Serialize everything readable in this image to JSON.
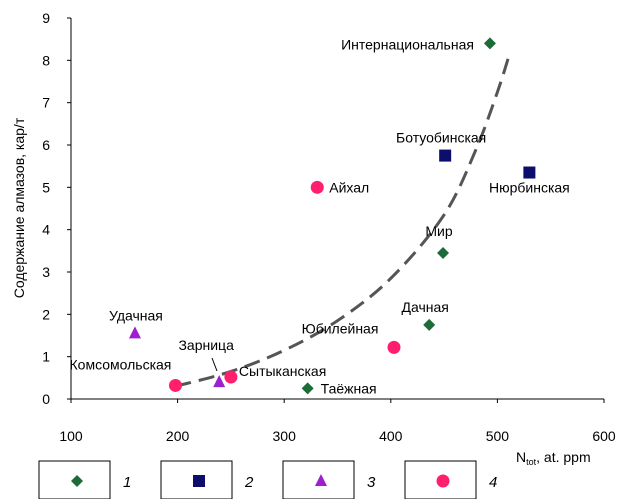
{
  "chart_data": {
    "type": "scatter",
    "xlabel": {
      "main": "N",
      "sub": "tot",
      "rest": ", at. ppm"
    },
    "ylabel": "Содержание алмазов, кар/т",
    "xlim": [
      100,
      600
    ],
    "ylim": [
      0,
      9
    ],
    "x_ticks": [
      "100",
      "200",
      "300",
      "400",
      "500",
      "600"
    ],
    "y_ticks": [
      "0",
      "1",
      "2",
      "3",
      "4",
      "5",
      "6",
      "7",
      "8",
      "9"
    ],
    "grid": false,
    "legend_position": "bottom",
    "series": [
      {
        "name": "1",
        "marker": "diamond",
        "color": "#1e6b3a",
        "points": [
          {
            "x": 493,
            "y": 8.4,
            "label": "Интернациональная"
          },
          {
            "x": 449,
            "y": 3.45,
            "label": "Мир"
          },
          {
            "x": 436,
            "y": 1.75,
            "label": "Дачная"
          },
          {
            "x": 322,
            "y": 0.25,
            "label": "Таёжная"
          }
        ]
      },
      {
        "name": "2",
        "marker": "square",
        "color": "#0d0d6b",
        "points": [
          {
            "x": 451,
            "y": 5.75,
            "label": "Ботуобинская"
          },
          {
            "x": 530,
            "y": 5.35,
            "label": "Нюрбинская"
          }
        ]
      },
      {
        "name": "3",
        "marker": "triangle",
        "color": "#9c1fd0",
        "points": [
          {
            "x": 160,
            "y": 1.55,
            "label": "Удачная"
          },
          {
            "x": 239,
            "y": 0.4,
            "label": "Зарница"
          }
        ]
      },
      {
        "name": "4",
        "marker": "circle",
        "color": "#ff1f6e",
        "points": [
          {
            "x": 331,
            "y": 5.0,
            "label": "Айхал"
          },
          {
            "x": 403,
            "y": 1.22,
            "label": "Юбилейная"
          },
          {
            "x": 250,
            "y": 0.52,
            "label": "Сытыканская"
          },
          {
            "x": 198,
            "y": 0.32,
            "label": "Комсомольская"
          }
        ]
      }
    ],
    "trendline": {
      "style": "dashed",
      "color": "#555555",
      "points": [
        [
          198,
          0.3
        ],
        [
          250,
          0.65
        ],
        [
          300,
          1.15
        ],
        [
          350,
          1.85
        ],
        [
          400,
          2.85
        ],
        [
          450,
          4.35
        ],
        [
          480,
          5.9
        ],
        [
          500,
          7.25
        ],
        [
          512,
          8.2
        ]
      ]
    }
  }
}
